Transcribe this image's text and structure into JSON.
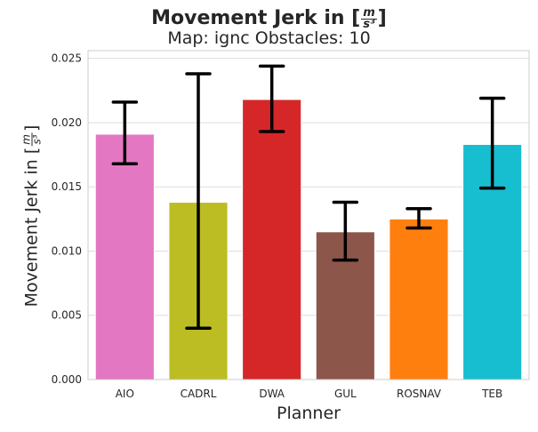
{
  "chart_data": {
    "type": "bar",
    "title": {
      "prefix": "Movement Jerk in [",
      "frac_num": "m",
      "frac_den": "s³",
      "suffix": "]"
    },
    "subtitle": "Map: ignc Obstacles: 10",
    "xlabel": "Planner",
    "ylabel": {
      "prefix": "Movement Jerk in [",
      "frac_num": "m",
      "frac_den": "s³",
      "suffix": "]"
    },
    "categories": [
      "AIO",
      "CADRL",
      "DWA",
      "GUL",
      "ROSNAV",
      "TEB"
    ],
    "values": [
      0.0191,
      0.0138,
      0.0218,
      0.0115,
      0.0125,
      0.0183
    ],
    "error_low": [
      0.0168,
      0.004,
      0.0193,
      0.0093,
      0.0118,
      0.0149
    ],
    "error_high": [
      0.0216,
      0.0238,
      0.0244,
      0.0138,
      0.0133,
      0.0219
    ],
    "colors": [
      "#e377c2",
      "#bcbd22",
      "#d62728",
      "#8c564b",
      "#ff7f0e",
      "#17becf"
    ],
    "yticks": [
      "0.000",
      "0.005",
      "0.010",
      "0.015",
      "0.020",
      "0.025"
    ],
    "ylim": [
      0,
      0.0256
    ],
    "grid": true,
    "legend": "none"
  }
}
